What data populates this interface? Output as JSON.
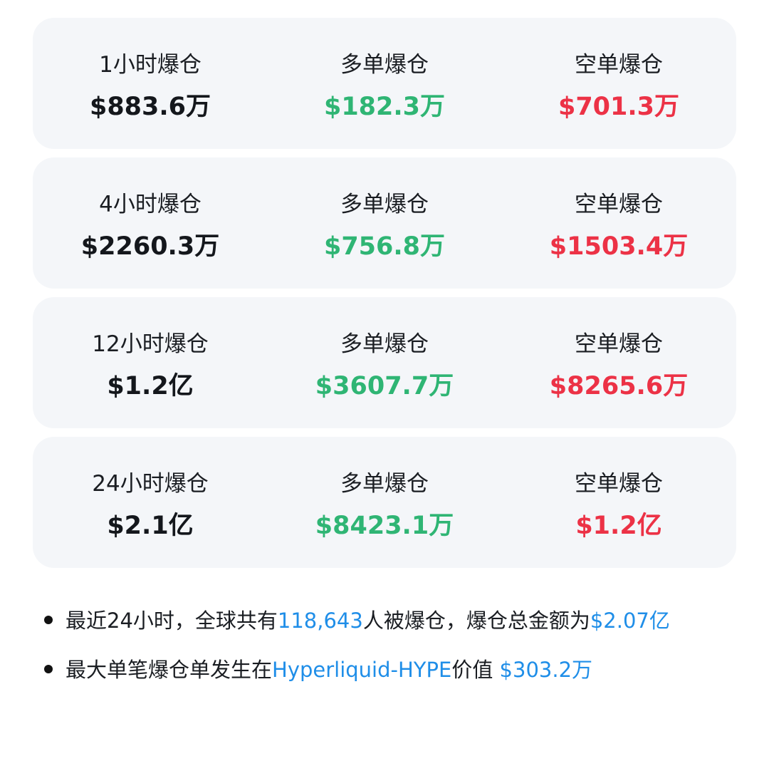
{
  "cards": [
    {
      "period": "1小时爆仓",
      "total": "$883.6万",
      "long_label": "多单爆仓",
      "long": "$182.3万",
      "short_label": "空单爆仓",
      "short": "$701.3万"
    },
    {
      "period": "4小时爆仓",
      "total": "$2260.3万",
      "long_label": "多单爆仓",
      "long": "$756.8万",
      "short_label": "空单爆仓",
      "short": "$1503.4万"
    },
    {
      "period": "12小时爆仓",
      "total": "$1.2亿",
      "long_label": "多单爆仓",
      "long": "$3607.7万",
      "short_label": "空单爆仓",
      "short": "$8265.6万"
    },
    {
      "period": "24小时爆仓",
      "total": "$2.1亿",
      "long_label": "多单爆仓",
      "long": "$8423.1万",
      "short_label": "空单爆仓",
      "short": "$1.2亿"
    }
  ],
  "notes": [
    {
      "t1": "最近24小时，全球共有",
      "h1": "118,643",
      "t2": "人被爆仓，爆仓总金额为",
      "h2": "$2.07亿"
    },
    {
      "t1": "最大单笔爆仓单发生在",
      "h1": "Hyperliquid-HYPE",
      "t2": "价值 ",
      "h2": "$303.2万"
    }
  ],
  "colors": {
    "long": "#2fb574",
    "short": "#ec3246",
    "highlight": "#1f8ee8",
    "card_bg": "#f4f6f9"
  }
}
